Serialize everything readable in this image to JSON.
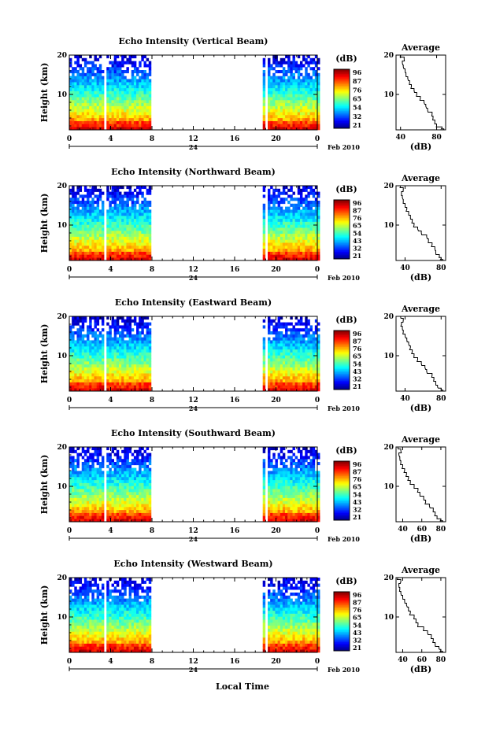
{
  "figure": {
    "xlabel": "Local Time",
    "date_label": "Feb 2010",
    "day_label": "24",
    "y_axis_label": "Height (km)",
    "colorbar_unit": "(dB)",
    "profile_title": "Average",
    "profile_xlabel": "(dB)"
  },
  "chart_data": [
    {
      "type": "heatmap",
      "title": "Echo Intensity (Vertical Beam)",
      "x_ticks": [
        "0",
        "4",
        "8",
        "12",
        "16",
        "20",
        "0"
      ],
      "y_ticks": [
        "10",
        "20"
      ],
      "xlim": [
        0,
        24
      ],
      "ylim": [
        1,
        20
      ],
      "data_gaps_hours": [
        [
          3.4,
          3.7
        ],
        [
          8.0,
          18.6
        ],
        [
          19.0,
          19.3
        ]
      ],
      "colorbar": {
        "ticks": [
          "96",
          "87",
          "76",
          "65",
          "54",
          "32",
          "21"
        ],
        "range": [
          21,
          96
        ],
        "colormap": "jet"
      },
      "profile": {
        "title": "Average",
        "xlabel": "(dB)",
        "x_ticks": [
          "40",
          "80"
        ],
        "xlim": [
          35,
          90
        ],
        "y_ticks": [
          "10",
          "20"
        ],
        "ylim": [
          1,
          20
        ],
        "heights_km": [
          1,
          1.5,
          2,
          3,
          4,
          5,
          6,
          7,
          8,
          9,
          10,
          11,
          12,
          13,
          14,
          15,
          16,
          17,
          18,
          19,
          20
        ],
        "values_db": [
          88,
          86,
          80,
          78,
          76,
          75,
          70,
          68,
          66,
          62,
          58,
          55,
          52,
          50,
          48,
          46,
          45,
          43,
          42,
          44,
          40
        ]
      }
    },
    {
      "type": "heatmap",
      "title": "Echo Intensity (Northward Beam)",
      "x_ticks": [
        "0",
        "4",
        "8",
        "12",
        "16",
        "20",
        "0"
      ],
      "y_ticks": [
        "10",
        "20"
      ],
      "xlim": [
        0,
        24
      ],
      "ylim": [
        1,
        20
      ],
      "data_gaps_hours": [
        [
          3.4,
          3.7
        ],
        [
          8.0,
          18.6
        ],
        [
          19.0,
          19.3
        ]
      ],
      "colorbar": {
        "ticks": [
          "96",
          "87",
          "76",
          "65",
          "54",
          "43",
          "32",
          "21"
        ],
        "range": [
          21,
          96
        ],
        "colormap": "jet"
      },
      "profile": {
        "title": "Average",
        "xlabel": "(dB)",
        "x_ticks": [
          "40",
          "80"
        ],
        "xlim": [
          30,
          85
        ],
        "y_ticks": [
          "10",
          "20"
        ],
        "ylim": [
          1,
          20
        ],
        "heights_km": [
          1,
          1.5,
          2,
          3,
          4,
          5,
          6,
          7,
          8,
          9,
          10,
          11,
          12,
          13,
          14,
          15,
          16,
          17,
          18,
          19,
          20
        ],
        "values_db": [
          82,
          80,
          78,
          74,
          73,
          70,
          66,
          64,
          58,
          54,
          50,
          48,
          46,
          44,
          42,
          40,
          38,
          37,
          36,
          38,
          35
        ]
      }
    },
    {
      "type": "heatmap",
      "title": "Echo Intensity (Eastward Beam)",
      "x_ticks": [
        "0",
        "4",
        "8",
        "12",
        "16",
        "20",
        "0"
      ],
      "y_ticks": [
        "10",
        "20"
      ],
      "xlim": [
        0,
        24
      ],
      "ylim": [
        1,
        20
      ],
      "data_gaps_hours": [
        [
          3.4,
          3.7
        ],
        [
          8.0,
          18.6
        ],
        [
          19.0,
          19.3
        ]
      ],
      "colorbar": {
        "ticks": [
          "96",
          "87",
          "76",
          "65",
          "54",
          "43",
          "32",
          "21"
        ],
        "range": [
          21,
          96
        ],
        "colormap": "jet"
      },
      "profile": {
        "title": "Average",
        "xlabel": "(dB)",
        "x_ticks": [
          "40",
          "80"
        ],
        "xlim": [
          30,
          85
        ],
        "y_ticks": [
          "10",
          "20"
        ],
        "ylim": [
          1,
          20
        ],
        "heights_km": [
          1,
          1.5,
          2,
          3,
          4,
          5,
          6,
          7,
          8,
          9,
          10,
          11,
          12,
          13,
          14,
          15,
          16,
          17,
          18,
          19,
          20
        ],
        "values_db": [
          82,
          80,
          76,
          74,
          72,
          70,
          64,
          62,
          58,
          54,
          50,
          48,
          46,
          44,
          42,
          40,
          38,
          37,
          36,
          38,
          35
        ]
      }
    },
    {
      "type": "heatmap",
      "title": "Echo Intensity (Southward Beam)",
      "x_ticks": [
        "0",
        "4",
        "8",
        "12",
        "16",
        "20",
        "0"
      ],
      "y_ticks": [
        "10",
        "20"
      ],
      "xlim": [
        0,
        24
      ],
      "ylim": [
        1,
        20
      ],
      "data_gaps_hours": [
        [
          3.4,
          3.7
        ],
        [
          8.0,
          18.6
        ],
        [
          19.0,
          19.3
        ]
      ],
      "colorbar": {
        "ticks": [
          "96",
          "87",
          "76",
          "65",
          "54",
          "43",
          "32",
          "21"
        ],
        "range": [
          21,
          96
        ],
        "colormap": "jet"
      },
      "profile": {
        "title": "Average",
        "xlabel": "(dB)",
        "x_ticks": [
          "40",
          "60",
          "80"
        ],
        "xlim": [
          33,
          85
        ],
        "y_ticks": [
          "10",
          "20"
        ],
        "ylim": [
          1,
          20
        ],
        "heights_km": [
          1,
          1.5,
          2,
          3,
          4,
          5,
          6,
          7,
          8,
          9,
          10,
          11,
          12,
          13,
          14,
          15,
          16,
          17,
          18,
          19,
          20
        ],
        "values_db": [
          82,
          80,
          76,
          74,
          72,
          68,
          64,
          62,
          58,
          56,
          52,
          48,
          46,
          44,
          42,
          40,
          38,
          37,
          36,
          38,
          35
        ]
      }
    },
    {
      "type": "heatmap",
      "title": "Echo Intensity (Westward Beam)",
      "x_ticks": [
        "0",
        "4",
        "8",
        "12",
        "16",
        "20",
        "0"
      ],
      "y_ticks": [
        "10",
        "20"
      ],
      "xlim": [
        0,
        24
      ],
      "ylim": [
        1,
        20
      ],
      "data_gaps_hours": [
        [
          3.4,
          3.7
        ],
        [
          8.0,
          18.6
        ],
        [
          19.0,
          19.3
        ]
      ],
      "colorbar": {
        "ticks": [
          "96",
          "87",
          "76",
          "65",
          "54",
          "43",
          "32",
          "21"
        ],
        "range": [
          21,
          96
        ],
        "colormap": "jet"
      },
      "profile": {
        "title": "Average",
        "xlabel": "(dB)",
        "x_ticks": [
          "40",
          "60",
          "80"
        ],
        "xlim": [
          33,
          85
        ],
        "y_ticks": [
          "10",
          "20"
        ],
        "ylim": [
          1,
          20
        ],
        "heights_km": [
          1,
          1.5,
          2,
          3,
          4,
          5,
          6,
          7,
          8,
          9,
          10,
          11,
          12,
          13,
          14,
          15,
          16,
          17,
          18,
          19,
          20
        ],
        "values_db": [
          82,
          80,
          78,
          74,
          72,
          70,
          66,
          62,
          56,
          54,
          52,
          48,
          46,
          44,
          42,
          40,
          38,
          37,
          36,
          38,
          35
        ]
      }
    }
  ]
}
